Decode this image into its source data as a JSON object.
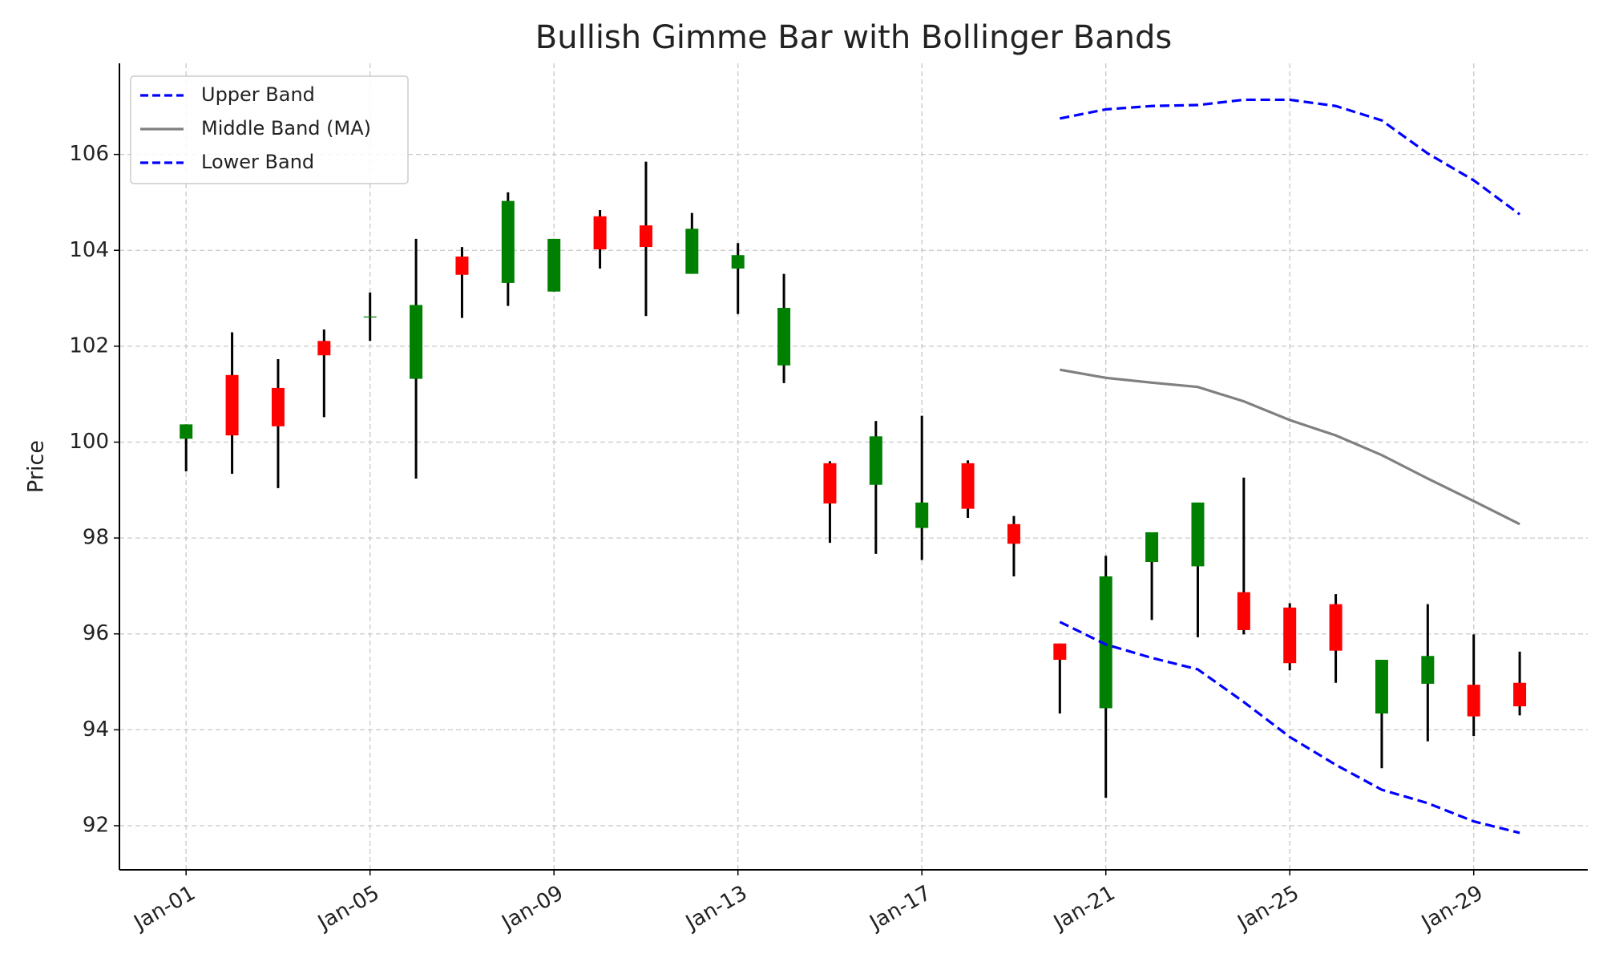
{
  "chart_data": {
    "type": "candlestick",
    "title": "Bullish Gimme Bar with Bollinger Bands",
    "ylabel": "Price",
    "x": [
      1,
      2,
      3,
      4,
      5,
      6,
      7,
      8,
      9,
      10,
      11,
      12,
      13,
      14,
      15,
      16,
      17,
      18,
      19,
      20,
      21,
      22,
      23,
      24,
      25,
      26,
      27,
      28,
      29,
      30
    ],
    "open": [
      100.07,
      101.4,
      101.13,
      102.11,
      102.6,
      101.32,
      103.87,
      103.32,
      103.14,
      104.71,
      104.52,
      103.51,
      103.62,
      101.6,
      99.56,
      99.11,
      98.21,
      99.56,
      98.29,
      95.8,
      94.45,
      97.5,
      97.41,
      96.87,
      96.55,
      96.62,
      94.34,
      94.96,
      94.94,
      94.98
    ],
    "high": [
      100.37,
      102.29,
      101.73,
      102.35,
      103.12,
      104.24,
      104.07,
      105.21,
      104.24,
      104.84,
      105.85,
      104.78,
      104.15,
      103.51,
      99.6,
      100.44,
      100.55,
      99.62,
      98.46,
      95.8,
      97.63,
      98.12,
      98.74,
      99.26,
      96.64,
      96.83,
      95.46,
      96.62,
      95.99,
      95.63
    ],
    "low": [
      99.39,
      99.34,
      99.04,
      100.52,
      102.11,
      99.24,
      102.59,
      102.84,
      103.14,
      103.62,
      102.63,
      103.51,
      102.67,
      101.23,
      97.9,
      97.67,
      97.54,
      98.42,
      97.2,
      94.34,
      92.58,
      96.29,
      95.93,
      95.99,
      95.24,
      94.98,
      93.2,
      93.76,
      93.87,
      94.3
    ],
    "close": [
      100.37,
      100.14,
      100.33,
      101.81,
      102.62,
      102.86,
      103.49,
      105.03,
      104.24,
      104.02,
      104.07,
      104.45,
      103.9,
      102.8,
      98.72,
      100.12,
      98.74,
      98.61,
      97.88,
      95.46,
      97.2,
      98.12,
      98.74,
      96.08,
      95.39,
      95.65,
      95.46,
      95.54,
      94.28,
      94.49
    ],
    "up_color": "#008000",
    "down_color": "#ff0000",
    "wick_color": "#000000",
    "series": [
      {
        "name": "Upper Band",
        "color": "#0000ff",
        "dash": true,
        "values": [
          null,
          null,
          null,
          null,
          null,
          null,
          null,
          null,
          null,
          null,
          null,
          null,
          null,
          null,
          null,
          null,
          null,
          null,
          null,
          106.75,
          106.94,
          107.01,
          107.03,
          107.14,
          107.14,
          107.01,
          106.71,
          106.02,
          105.46,
          104.75
        ]
      },
      {
        "name": "Middle Band (MA)",
        "color": "#808080",
        "dash": false,
        "values": [
          null,
          null,
          null,
          null,
          null,
          null,
          null,
          null,
          null,
          null,
          null,
          null,
          null,
          null,
          null,
          null,
          null,
          null,
          null,
          101.51,
          101.34,
          101.24,
          101.15,
          100.85,
          100.46,
          100.14,
          99.73,
          99.24,
          98.77,
          98.29
        ]
      },
      {
        "name": "Lower Band",
        "color": "#0000ff",
        "dash": true,
        "values": [
          null,
          null,
          null,
          null,
          null,
          null,
          null,
          null,
          null,
          null,
          null,
          null,
          null,
          null,
          null,
          null,
          null,
          null,
          null,
          96.25,
          95.78,
          95.5,
          95.26,
          94.58,
          93.85,
          93.27,
          92.75,
          92.47,
          92.09,
          91.85
        ]
      }
    ],
    "xlim": [
      -0.45,
      31.48
    ],
    "ylim": [
      91.08,
      107.9
    ],
    "xticks": [
      {
        "value": 1,
        "label": "Jan-01"
      },
      {
        "value": 5,
        "label": "Jan-05"
      },
      {
        "value": 9,
        "label": "Jan-09"
      },
      {
        "value": 13,
        "label": "Jan-13"
      },
      {
        "value": 17,
        "label": "Jan-17"
      },
      {
        "value": 21,
        "label": "Jan-21"
      },
      {
        "value": 25,
        "label": "Jan-25"
      },
      {
        "value": 29,
        "label": "Jan-29"
      }
    ],
    "yticks": [
      92,
      94,
      96,
      98,
      100,
      102,
      104,
      106
    ],
    "grid": true,
    "legend": "upper left"
  }
}
